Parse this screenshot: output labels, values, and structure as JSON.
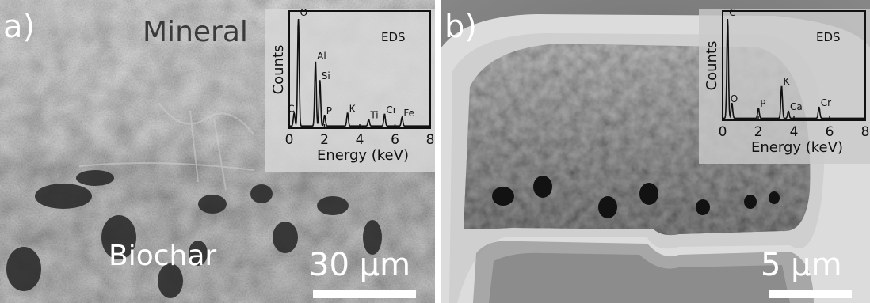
{
  "panels": [
    {
      "letter": "a)",
      "region_labels": [
        "Mineral",
        "Biochar"
      ],
      "scale_bar": "30 µm",
      "inset": {
        "title": "EDS",
        "ylabel": "Counts",
        "xlabel": "Energy (keV)",
        "xticks": [
          "0",
          "2",
          "4",
          "6",
          "8"
        ],
        "peaks": [
          {
            "label": "O",
            "x": 0.52,
            "height": 1.0
          },
          {
            "label": "C",
            "x": 0.28,
            "height": 0.12
          },
          {
            "label": "Al",
            "x": 1.49,
            "height": 0.6
          },
          {
            "label": "Si",
            "x": 1.74,
            "height": 0.42
          },
          {
            "label": "P",
            "x": 2.01,
            "height": 0.1
          },
          {
            "label": "K",
            "x": 3.31,
            "height": 0.12
          },
          {
            "label": "Ti",
            "x": 4.51,
            "height": 0.06
          },
          {
            "label": "Cr",
            "x": 5.41,
            "height": 0.11
          },
          {
            "label": "Fe",
            "x": 6.4,
            "height": 0.08
          }
        ]
      }
    },
    {
      "letter": "b)",
      "scale_bar": "5 µm",
      "inset": {
        "title": "EDS",
        "ylabel": "Counts",
        "xlabel": "Energy (keV)",
        "xticks": [
          "0",
          "2",
          "4",
          "6",
          "8"
        ],
        "peaks": [
          {
            "label": "C",
            "x": 0.28,
            "height": 1.0
          },
          {
            "label": "O",
            "x": 0.52,
            "height": 0.15
          },
          {
            "label": "P",
            "x": 2.01,
            "height": 0.1
          },
          {
            "label": "K",
            "x": 3.31,
            "height": 0.32
          },
          {
            "label": "Ca",
            "x": 3.69,
            "height": 0.07
          },
          {
            "label": "Cr",
            "x": 5.41,
            "height": 0.11
          }
        ]
      }
    }
  ]
}
